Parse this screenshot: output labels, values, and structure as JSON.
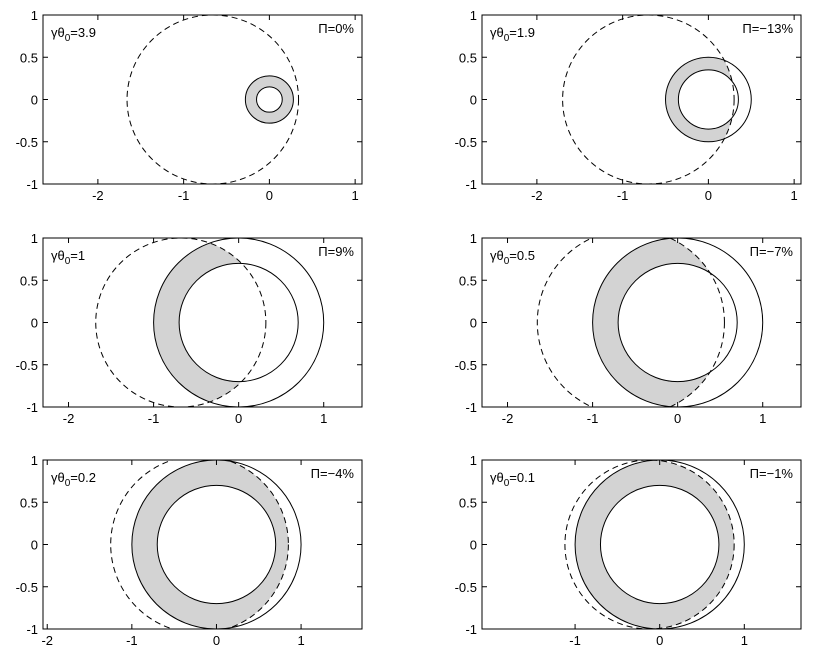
{
  "chart_data": [
    {
      "type": "circles",
      "label": [
        "γθ",
        "0",
        "=3.9"
      ],
      "annotation": "Π=0%",
      "xlim": [
        -2.64,
        1.08
      ],
      "ylim": [
        -1,
        1
      ],
      "xticks": [
        -2,
        -1,
        0,
        1
      ],
      "yticks": [
        -1,
        -0.5,
        0,
        0.5,
        1
      ],
      "dashed": {
        "x": -0.66,
        "y": 0,
        "r": 1
      },
      "outer": {
        "x": 0,
        "y": 0,
        "r": 0.28
      },
      "inner": {
        "x": 0,
        "y": 0,
        "r": 0.15
      },
      "shade_color": "#d3d3d3"
    },
    {
      "type": "circles",
      "label": [
        "γθ",
        "0",
        "=1.9"
      ],
      "annotation": "Π=−13%",
      "xlim": [
        -2.64,
        1.08
      ],
      "ylim": [
        -1,
        1
      ],
      "xticks": [
        -2,
        -1,
        0,
        1
      ],
      "yticks": [
        -1,
        -0.5,
        0,
        0.5,
        1
      ],
      "dashed": {
        "x": -0.7,
        "y": 0,
        "r": 1
      },
      "outer": {
        "x": 0,
        "y": 0,
        "r": 0.5
      },
      "inner": {
        "x": 0,
        "y": 0,
        "r": 0.35
      },
      "shade_color": "#d3d3d3"
    },
    {
      "type": "circles",
      "label": [
        "γθ",
        "0",
        "=1"
      ],
      "annotation": "Π=9%",
      "xlim": [
        -2.3,
        1.45
      ],
      "ylim": [
        -1,
        1
      ],
      "xticks": [
        -2,
        -1,
        0,
        1
      ],
      "yticks": [
        -1,
        -0.5,
        0,
        0.5,
        1
      ],
      "dashed": {
        "x": -0.68,
        "y": 0,
        "r": 1
      },
      "outer": {
        "x": 0,
        "y": 0,
        "r": 1
      },
      "inner": {
        "x": 0,
        "y": 0,
        "r": 0.7
      },
      "shade_color": "#d3d3d3"
    },
    {
      "type": "circles",
      "label": [
        "γθ",
        "0",
        "=0.5"
      ],
      "annotation": "Π=−7%",
      "xlim": [
        -2.3,
        1.45
      ],
      "ylim": [
        -1,
        1
      ],
      "xticks": [
        -2,
        -1,
        0,
        1
      ],
      "yticks": [
        -1,
        -0.5,
        0,
        0.5,
        1
      ],
      "dashed": {
        "x": -0.55,
        "y": 0,
        "r": 1.1
      },
      "outer": {
        "x": 0,
        "y": 0,
        "r": 1
      },
      "inner": {
        "x": 0,
        "y": 0,
        "r": 0.7
      },
      "shade_color": "#d3d3d3"
    },
    {
      "type": "circles",
      "label": [
        "γθ",
        "0",
        "=0.2"
      ],
      "annotation": "Π=−4%",
      "xlim": [
        -2.05,
        1.72
      ],
      "ylim": [
        -1,
        1
      ],
      "xticks": [
        -2,
        -1,
        0,
        1
      ],
      "yticks": [
        -1,
        -0.5,
        0,
        0.5,
        1
      ],
      "dashed": {
        "x": -0.2,
        "y": 0,
        "r": 1.05
      },
      "outer": {
        "x": 0,
        "y": 0,
        "r": 1
      },
      "inner": {
        "x": 0,
        "y": 0,
        "r": 0.7
      },
      "shade_color": "#d3d3d3"
    },
    {
      "type": "circles",
      "label": [
        "γθ",
        "0",
        "=0.1"
      ],
      "annotation": "Π=−1%",
      "xlim": [
        -2.1,
        1.67
      ],
      "ylim": [
        -1,
        1
      ],
      "xticks": [
        -1,
        0,
        1
      ],
      "yticks": [
        -1,
        -0.5,
        0,
        0.5,
        1
      ],
      "dashed": {
        "x": -0.12,
        "y": 0,
        "r": 1
      },
      "outer": {
        "x": 0,
        "y": 0,
        "r": 1
      },
      "inner": {
        "x": 0,
        "y": 0,
        "r": 0.7
      },
      "shade_color": "#d3d3d3"
    }
  ]
}
